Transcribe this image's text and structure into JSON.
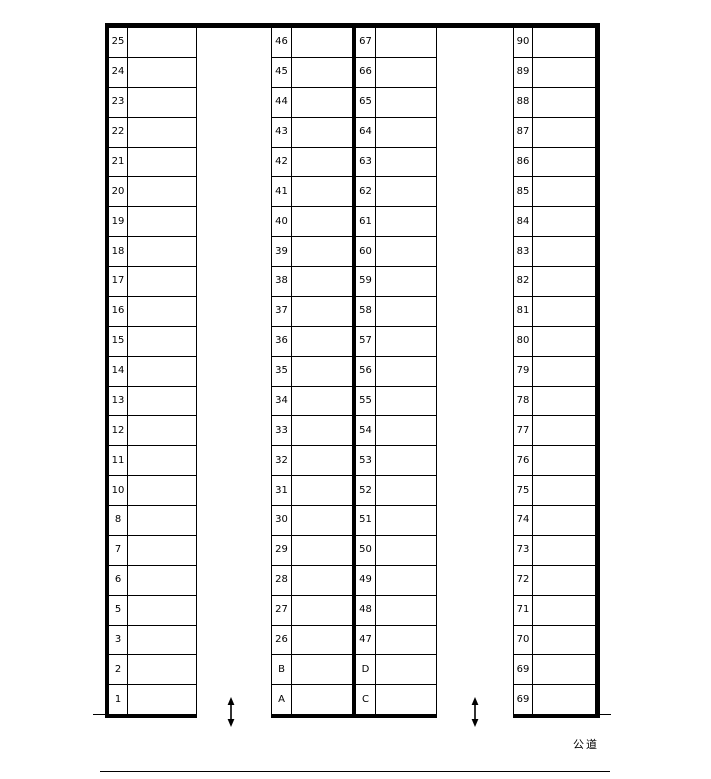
{
  "diagram": {
    "type": "parking-lot-layout",
    "road_label": "公道",
    "colors": {
      "line": "#000000",
      "background": "#ffffff"
    },
    "entrance_arrow": {
      "icon": "double-vertical-arrow",
      "glyph": "↕",
      "count": 2
    },
    "columns": [
      {
        "name": "column-1",
        "cells": [
          "25",
          "24",
          "23",
          "22",
          "21",
          "20",
          "19",
          "18",
          "17",
          "16",
          "15",
          "14",
          "13",
          "12",
          "11",
          "10",
          "8",
          "7",
          "6",
          "5",
          "3",
          "2",
          "1"
        ]
      },
      {
        "name": "column-2",
        "cells": [
          "46",
          "45",
          "44",
          "43",
          "42",
          "41",
          "40",
          "39",
          "38",
          "37",
          "36",
          "35",
          "34",
          "33",
          "32",
          "31",
          "30",
          "29",
          "28",
          "27",
          "26",
          "B",
          "A"
        ]
      },
      {
        "name": "column-3",
        "cells": [
          "67",
          "66",
          "65",
          "64",
          "63",
          "62",
          "61",
          "60",
          "59",
          "58",
          "57",
          "56",
          "55",
          "54",
          "53",
          "52",
          "51",
          "50",
          "49",
          "48",
          "47",
          "D",
          "C"
        ]
      },
      {
        "name": "column-4",
        "cells": [
          "90",
          "89",
          "88",
          "87",
          "86",
          "85",
          "84",
          "83",
          "82",
          "81",
          "80",
          "79",
          "78",
          "77",
          "76",
          "75",
          "74",
          "73",
          "72",
          "71",
          "70",
          "69",
          "69"
        ]
      }
    ]
  }
}
